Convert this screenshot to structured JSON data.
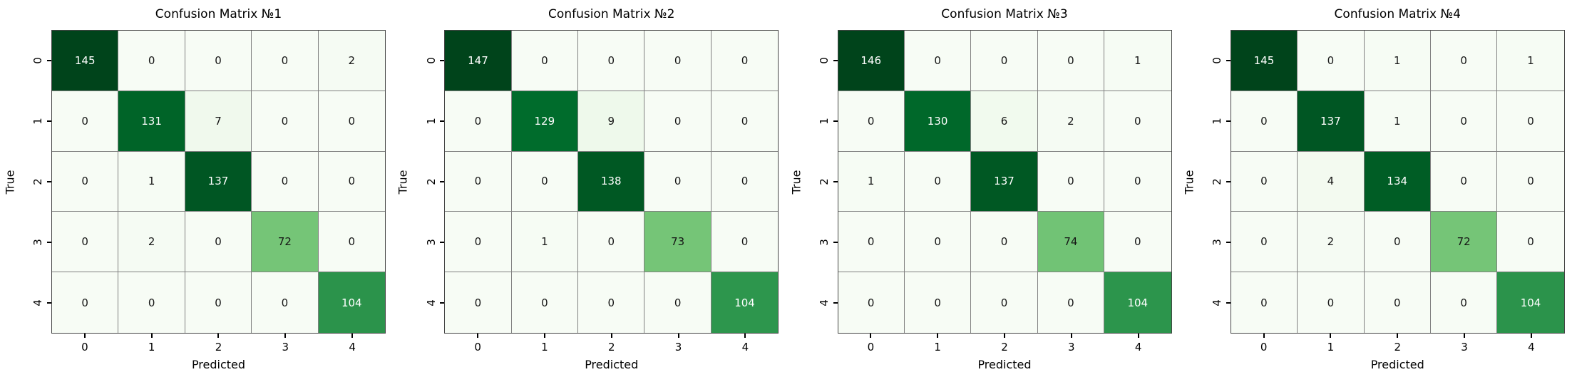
{
  "figure": {
    "background_color": "#ffffff",
    "grid_line_color": "#808080",
    "outer_border_color": "#444444",
    "tick_color": "#000000",
    "text_color": "#000000",
    "annotation_dark_text": "#151515",
    "annotation_light_text": "#ffffff"
  },
  "chart_data": [
    {
      "type": "heatmap",
      "title": "Confusion Matrix №1",
      "xlabel": "Predicted",
      "ylabel": "True",
      "x_ticklabels": [
        "0",
        "1",
        "2",
        "3",
        "4"
      ],
      "y_ticklabels": [
        "0",
        "1",
        "2",
        "3",
        "4"
      ],
      "colormap": "Greens",
      "vmin": 0,
      "vmax": 145,
      "matrix": [
        [
          145,
          0,
          0,
          0,
          2
        ],
        [
          0,
          131,
          7,
          0,
          0
        ],
        [
          0,
          1,
          137,
          0,
          0
        ],
        [
          0,
          2,
          0,
          72,
          0
        ],
        [
          0,
          0,
          0,
          0,
          104
        ]
      ]
    },
    {
      "type": "heatmap",
      "title": "Confusion Matrix №2",
      "xlabel": "Predicted",
      "ylabel": "True",
      "x_ticklabels": [
        "0",
        "1",
        "2",
        "3",
        "4"
      ],
      "y_ticklabels": [
        "0",
        "1",
        "2",
        "3",
        "4"
      ],
      "colormap": "Greens",
      "vmin": 0,
      "vmax": 147,
      "matrix": [
        [
          147,
          0,
          0,
          0,
          0
        ],
        [
          0,
          129,
          9,
          0,
          0
        ],
        [
          0,
          0,
          138,
          0,
          0
        ],
        [
          0,
          1,
          0,
          73,
          0
        ],
        [
          0,
          0,
          0,
          0,
          104
        ]
      ]
    },
    {
      "type": "heatmap",
      "title": "Confusion Matrix №3",
      "xlabel": "Predicted",
      "ylabel": "True",
      "x_ticklabels": [
        "0",
        "1",
        "2",
        "3",
        "4"
      ],
      "y_ticklabels": [
        "0",
        "1",
        "2",
        "3",
        "4"
      ],
      "colormap": "Greens",
      "vmin": 0,
      "vmax": 146,
      "matrix": [
        [
          146,
          0,
          0,
          0,
          1
        ],
        [
          0,
          130,
          6,
          2,
          0
        ],
        [
          1,
          0,
          137,
          0,
          0
        ],
        [
          0,
          0,
          0,
          74,
          0
        ],
        [
          0,
          0,
          0,
          0,
          104
        ]
      ]
    },
    {
      "type": "heatmap",
      "title": "Confusion Matrix №4",
      "xlabel": "Predicted",
      "ylabel": "True",
      "x_ticklabels": [
        "0",
        "1",
        "2",
        "3",
        "4"
      ],
      "y_ticklabels": [
        "0",
        "1",
        "2",
        "3",
        "4"
      ],
      "colormap": "Greens",
      "vmin": 0,
      "vmax": 145,
      "matrix": [
        [
          145,
          0,
          1,
          0,
          1
        ],
        [
          0,
          137,
          1,
          0,
          0
        ],
        [
          0,
          4,
          134,
          0,
          0
        ],
        [
          0,
          2,
          0,
          72,
          0
        ],
        [
          0,
          0,
          0,
          0,
          104
        ]
      ]
    }
  ]
}
